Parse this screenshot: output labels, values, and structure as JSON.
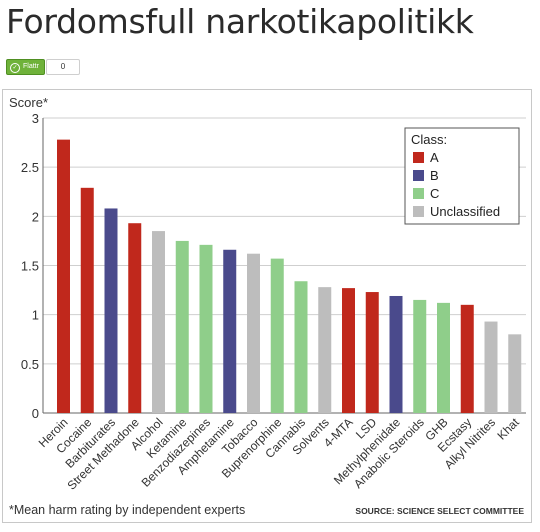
{
  "page": {
    "title": "Fordomsfull narkotikapolitikk",
    "flattr_label": "Flattr",
    "flattr_count": "0"
  },
  "chart_data": {
    "type": "bar",
    "ylabel": "Score*",
    "ylim": [
      0,
      3
    ],
    "yticks": [
      "0",
      "0.5",
      "1",
      "1.5",
      "2",
      "2.5",
      "3"
    ],
    "grid": true,
    "categories": [
      "Heroin",
      "Cocaine",
      "Barbiturates",
      "Street Methadone",
      "Alcohol",
      "Ketamine",
      "Benzodiazepines",
      "Amphetamine",
      "Tobacco",
      "Buprenorphine",
      "Cannabis",
      "Solvents",
      "4-MTA",
      "LSD",
      "Methylphenidate",
      "Anabolic Steroids",
      "GHB",
      "Ecstasy",
      "Alkyl Nitrites",
      "Khat"
    ],
    "values": [
      2.78,
      2.29,
      2.08,
      1.93,
      1.85,
      1.75,
      1.71,
      1.66,
      1.62,
      1.57,
      1.34,
      1.28,
      1.27,
      1.23,
      1.19,
      1.15,
      1.12,
      1.1,
      0.93,
      0.8
    ],
    "classes": [
      "A",
      "A",
      "B",
      "A",
      "Unclassified",
      "C",
      "C",
      "B",
      "Unclassified",
      "C",
      "C",
      "Unclassified",
      "A",
      "A",
      "B",
      "C",
      "C",
      "A",
      "Unclassified",
      "Unclassified"
    ],
    "legend": {
      "title": "Class:",
      "placement": "top-right",
      "items": [
        {
          "key": "A",
          "label": "A",
          "color": "#c0281c"
        },
        {
          "key": "B",
          "label": "B",
          "color": "#4a4a8c"
        },
        {
          "key": "C",
          "label": "C",
          "color": "#8fce8a"
        },
        {
          "key": "Unclassified",
          "label": "Unclassified",
          "color": "#bdbdbd"
        }
      ]
    },
    "footnote": "*Mean harm rating by independent experts",
    "source": "SOURCE: SCIENCE SELECT COMMITTEE"
  }
}
